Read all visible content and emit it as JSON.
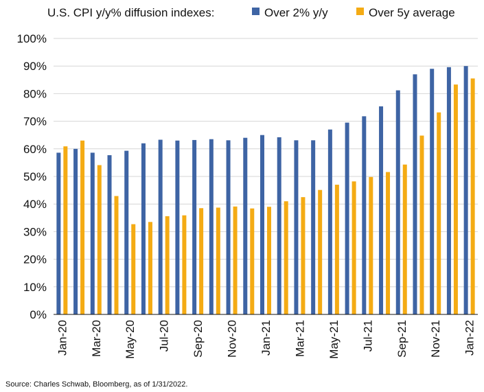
{
  "chart_data": {
    "type": "bar",
    "title": "U.S. CPI y/y% diffusion indexes:",
    "source": "Source: Charles Schwab, Bloomberg, as of 1/31/2022.",
    "ylim": [
      0,
      100
    ],
    "yticks": [
      "0%",
      "10%",
      "20%",
      "30%",
      "40%",
      "50%",
      "60%",
      "70%",
      "80%",
      "90%",
      "100%"
    ],
    "grid": true,
    "legend": "top",
    "categories": [
      "Jan-20",
      "Feb-20",
      "Mar-20",
      "Apr-20",
      "May-20",
      "Jun-20",
      "Jul-20",
      "Aug-20",
      "Sep-20",
      "Oct-20",
      "Nov-20",
      "Dec-20",
      "Jan-21",
      "Feb-21",
      "Mar-21",
      "Apr-21",
      "May-21",
      "Jun-21",
      "Jul-21",
      "Aug-21",
      "Sep-21",
      "Oct-21",
      "Nov-21",
      "Dec-21",
      "Jan-22"
    ],
    "xtick_labels": [
      "Jan-20",
      "",
      "Mar-20",
      "",
      "May-20",
      "",
      "Jul-20",
      "",
      "Sep-20",
      "",
      "Nov-20",
      "",
      "Jan-21",
      "",
      "Mar-21",
      "",
      "May-21",
      "",
      "Jul-21",
      "",
      "Sep-21",
      "",
      "Nov-21",
      "",
      "Jan-22"
    ],
    "series": [
      {
        "name": "Over 2% y/y",
        "color": "#3e64a4",
        "values": [
          58.6,
          60,
          58.6,
          57.7,
          59.3,
          62,
          63.3,
          63,
          63.2,
          63.5,
          63.1,
          64,
          65,
          64.2,
          63.1,
          63.1,
          67,
          69.5,
          71.8,
          75.4,
          81.2,
          87,
          89,
          89.6,
          90
        ]
      },
      {
        "name": "Over 5y average",
        "color": "#f4ab14",
        "values": [
          60.9,
          63,
          54.1,
          42.9,
          32.7,
          33.5,
          35.6,
          35.9,
          38.5,
          38.7,
          39.1,
          38.4,
          39,
          41,
          42.5,
          45.1,
          47,
          48.2,
          49.8,
          51.6,
          54.3,
          64.8,
          73.2,
          83.3,
          85.5
        ]
      }
    ]
  }
}
